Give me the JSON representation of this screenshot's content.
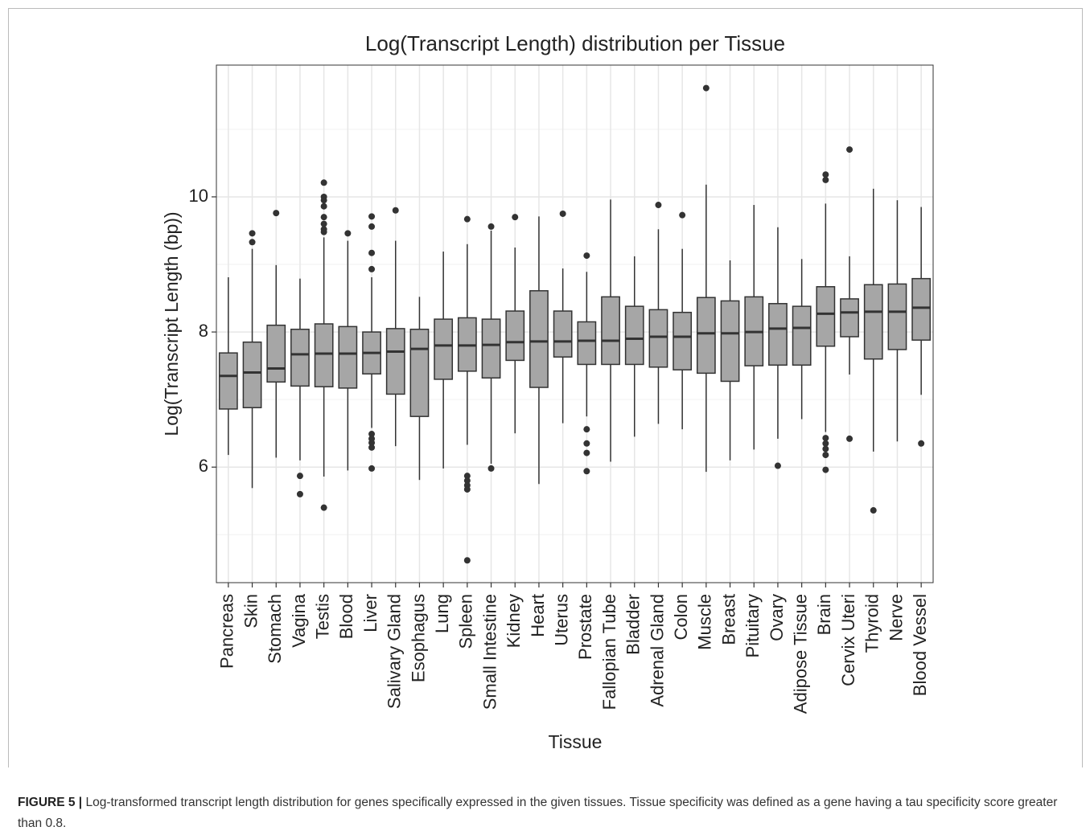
{
  "chart_data": {
    "type": "box",
    "title": "Log(Transcript Length) distribution per Tissue",
    "x_label": "Tissue",
    "y_label": "Log(Transcript Length (bp))",
    "categories": [
      "Pancreas",
      "Skin",
      "Stomach",
      "Vagina",
      "Testis",
      "Blood",
      "Liver",
      "Salivary Gland",
      "Esophagus",
      "Lung",
      "Spleen",
      "Small Intestine",
      "Kidney",
      "Heart",
      "Uterus",
      "Prostate",
      "Fallopian Tube",
      "Bladder",
      "Adrenal Gland",
      "Colon",
      "Muscle",
      "Breast",
      "Pituitary",
      "Ovary",
      "Adipose Tissue",
      "Brain",
      "Cervix Uteri",
      "Thyroid",
      "Nerve",
      "Blood Vessel"
    ],
    "whisker_low": [
      6.18,
      5.69,
      6.14,
      6.1,
      5.86,
      5.95,
      6.58,
      6.31,
      5.81,
      5.98,
      6.33,
      6.05,
      6.5,
      5.75,
      6.65,
      6.75,
      6.08,
      6.45,
      6.64,
      6.56,
      5.93,
      6.1,
      6.26,
      6.42,
      6.71,
      6.52,
      7.37,
      6.23,
      6.38,
      7.07
    ],
    "q1": [
      6.86,
      6.88,
      7.26,
      7.2,
      7.19,
      7.17,
      7.38,
      7.08,
      6.75,
      7.3,
      7.42,
      7.32,
      7.58,
      7.18,
      7.63,
      7.52,
      7.52,
      7.52,
      7.48,
      7.44,
      7.39,
      7.27,
      7.5,
      7.51,
      7.51,
      7.79,
      7.93,
      7.6,
      7.74,
      7.88
    ],
    "median": [
      7.35,
      7.4,
      7.46,
      7.67,
      7.68,
      7.68,
      7.69,
      7.71,
      7.75,
      7.8,
      7.8,
      7.81,
      7.85,
      7.86,
      7.86,
      7.87,
      7.87,
      7.9,
      7.93,
      7.93,
      7.98,
      7.98,
      8.0,
      8.05,
      8.06,
      8.27,
      8.29,
      8.3,
      8.3,
      8.36
    ],
    "q3": [
      7.69,
      7.85,
      8.1,
      8.04,
      8.12,
      8.08,
      8.0,
      8.05,
      8.04,
      8.19,
      8.21,
      8.19,
      8.31,
      8.61,
      8.31,
      8.15,
      8.52,
      8.38,
      8.33,
      8.29,
      8.51,
      8.46,
      8.52,
      8.42,
      8.38,
      8.67,
      8.49,
      8.7,
      8.71,
      8.79
    ],
    "whisker_high": [
      8.81,
      9.23,
      8.99,
      8.79,
      9.4,
      9.35,
      8.81,
      9.35,
      8.52,
      9.19,
      9.3,
      9.5,
      9.25,
      9.71,
      8.94,
      8.89,
      9.96,
      9.12,
      9.52,
      9.23,
      10.18,
      9.06,
      9.88,
      9.55,
      9.08,
      9.9,
      9.12,
      10.12,
      9.95,
      9.85
    ],
    "outliers": [
      [],
      [
        9.46,
        9.33
      ],
      [
        9.76
      ],
      [
        5.87,
        5.6
      ],
      [
        10.21,
        10.0,
        9.95,
        9.86,
        9.7,
        9.6,
        9.52,
        9.48,
        5.4
      ],
      [
        9.46
      ],
      [
        9.71,
        9.56,
        9.17,
        8.93,
        6.49,
        6.42,
        6.36,
        6.29,
        5.98
      ],
      [
        9.8
      ],
      [],
      [],
      [
        9.67,
        5.87,
        5.8,
        5.73,
        5.67,
        4.62
      ],
      [
        9.56,
        5.98
      ],
      [
        9.7
      ],
      [],
      [
        9.75
      ],
      [
        9.13,
        6.56,
        6.35,
        6.21,
        5.94
      ],
      [],
      [],
      [
        9.88
      ],
      [
        9.73
      ],
      [
        11.61
      ],
      [],
      [],
      [
        6.02
      ],
      [],
      [
        10.33,
        10.25,
        6.43,
        6.35,
        6.27,
        6.18,
        5.96
      ],
      [
        10.7,
        6.42
      ],
      [
        5.36
      ],
      [],
      [
        6.35
      ]
    ],
    "color": "#a6a6a6",
    "edge_color": "#333333",
    "ylim": [
      4.29,
      11.95
    ],
    "yticks": [
      6,
      8,
      10
    ],
    "yminor_ticks": [
      5,
      7,
      9,
      11
    ],
    "grid": true
  },
  "caption": {
    "label": "FIGURE 5 |",
    "text": "Log-transformed transcript length distribution for genes specifically expressed in the given tissues. Tissue specificity was defined as a gene having a tau specificity score greater than 0.8."
  }
}
